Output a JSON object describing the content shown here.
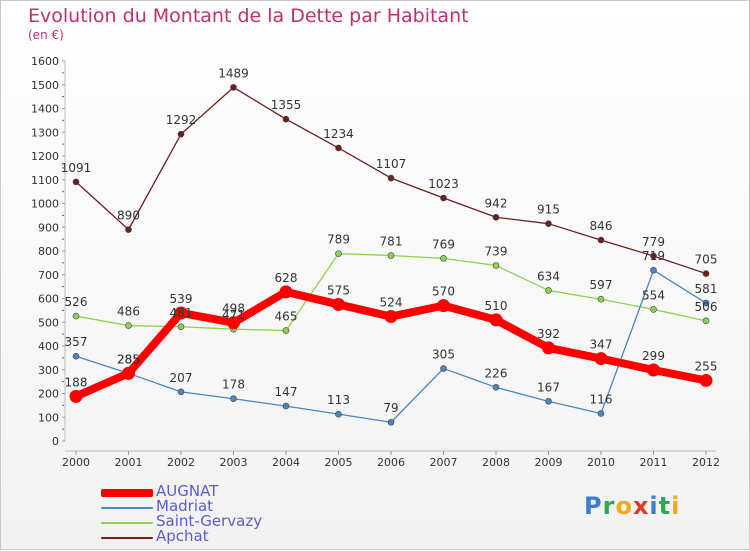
{
  "title": "Evolution du Montant de la Dette par Habitant",
  "subtitle": "(en €)",
  "logo": {
    "text": "Proxiti",
    "letters": [
      "P",
      "r",
      "o",
      "x",
      "i",
      "t",
      "i"
    ],
    "colors": [
      "#3a7fd5",
      "#2fa84f",
      "#f2a81d",
      "#e03a2f",
      "#3a7fd5",
      "#2fa84f",
      "#f2a81d"
    ]
  },
  "chart_data": {
    "type": "line",
    "title": "Evolution du Montant de la Dette par Habitant",
    "ylabel": "(en €)",
    "xlabel": "",
    "ylim": [
      0,
      1600
    ],
    "yticks": [
      0,
      100,
      200,
      300,
      400,
      500,
      600,
      700,
      800,
      900,
      1000,
      1100,
      1200,
      1300,
      1400,
      1500,
      1600
    ],
    "categories": [
      "2000",
      "2001",
      "2002",
      "2003",
      "2004",
      "2005",
      "2006",
      "2007",
      "2008",
      "2009",
      "2010",
      "2011",
      "2012"
    ],
    "legend_position": "bottom-left",
    "series": [
      {
        "name": "AUGNAT",
        "color": "#ff0000",
        "values": [
          188,
          285,
          539,
          498,
          628,
          575,
          524,
          570,
          510,
          392,
          347,
          299,
          255
        ]
      },
      {
        "name": "Madriat",
        "color": "#4a86c0",
        "values": [
          357,
          285,
          207,
          178,
          147,
          113,
          79,
          305,
          226,
          167,
          116,
          719,
          581
        ]
      },
      {
        "name": "Saint-Gervazy",
        "color": "#8ed14a",
        "values": [
          526,
          486,
          481,
          471,
          465,
          789,
          781,
          769,
          739,
          634,
          597,
          554,
          506
        ]
      },
      {
        "name": "Apchat",
        "color": "#6e1f1f",
        "values": [
          1091,
          890,
          1292,
          1489,
          1355,
          1234,
          1107,
          1023,
          942,
          915,
          846,
          779,
          705
        ]
      }
    ]
  }
}
